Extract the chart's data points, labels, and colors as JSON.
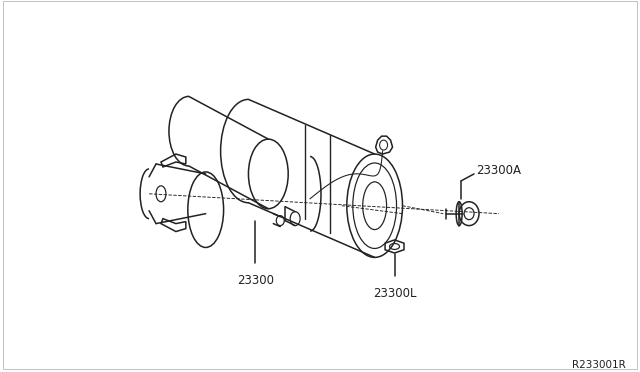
{
  "bg_color": "#ffffff",
  "line_color": "#222222",
  "line_width": 1.1,
  "label_23300": "23300",
  "label_23300A": "23300A",
  "label_23300L": "23300L",
  "ref_code": "R233001R",
  "fig_width": 6.4,
  "fig_height": 3.72,
  "dpi": 100,
  "border_color": "#aaaaaa"
}
